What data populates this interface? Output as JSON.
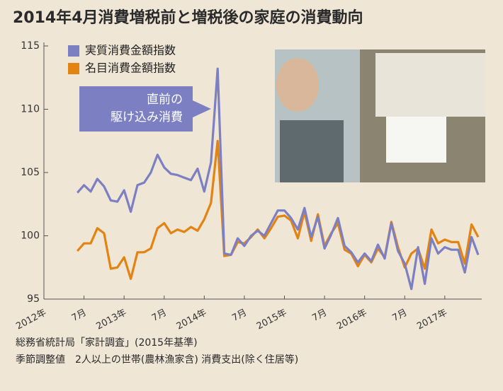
{
  "chart_data": {
    "type": "line",
    "title": "2014年4月消費増税前と増税後の家庭の消費動向",
    "categories": [
      "2012年",
      null,
      null,
      null,
      null,
      null,
      "7月",
      null,
      null,
      null,
      null,
      null,
      "2013年",
      null,
      null,
      null,
      null,
      null,
      "7月",
      null,
      null,
      null,
      null,
      null,
      "2014年",
      null,
      null,
      null,
      null,
      null,
      "7月",
      null,
      null,
      null,
      null,
      null,
      "2015年",
      null,
      null,
      null,
      null,
      null,
      "7月",
      null,
      null,
      null,
      null,
      null,
      "2016年",
      null,
      null,
      null,
      null,
      null,
      "7月",
      null,
      null,
      null,
      null,
      null,
      "2017年",
      null,
      null,
      null,
      null,
      null
    ],
    "series": [
      {
        "name": "実質消費金額指数",
        "color": "#7c80c2",
        "values": [
          null,
          null,
          null,
          null,
          null,
          103.4,
          104,
          103.5,
          104.5,
          103.9,
          102.8,
          102.7,
          103.6,
          101.9,
          104,
          104.2,
          105,
          106.4,
          105.4,
          104.9,
          104.8,
          104.6,
          104.4,
          105.3,
          103.5,
          105.8,
          113.2,
          98.6,
          98.5,
          99.8,
          99.2,
          100.0,
          100.4,
          100.0,
          101.0,
          102.0,
          102.0,
          101.4,
          100.5,
          102.2,
          99.9,
          101.5,
          99.0,
          100.1,
          101.4,
          99.2,
          98.7,
          97.9,
          98.6,
          98.0,
          99.3,
          98.2,
          101.0,
          98.8,
          97.8,
          95.8,
          99.1,
          96.2,
          99.8,
          98.6,
          99.1,
          98.9,
          98.9,
          97.1,
          99.9,
          98.5
        ]
      },
      {
        "name": "名目消費金額指数",
        "color": "#e38311",
        "values": [
          null,
          null,
          null,
          null,
          null,
          98.8,
          99.4,
          99.4,
          100.6,
          100.2,
          97.4,
          97.5,
          98.3,
          96.6,
          98.7,
          98.7,
          99.0,
          100.6,
          101.0,
          100.2,
          100.5,
          100.3,
          100.7,
          100.4,
          101.3,
          102.6,
          107.5,
          98.4,
          98.5,
          99.5,
          99.4,
          99.9,
          100.5,
          99.8,
          100.6,
          101.5,
          101.6,
          101.2,
          99.8,
          101.9,
          99.6,
          101.7,
          99.2,
          100.2,
          101.0,
          98.9,
          98.6,
          97.6,
          98.5,
          97.9,
          99.0,
          98.3,
          101.1,
          99.1,
          97.5,
          98.6,
          99.0,
          97.4,
          100.5,
          99.4,
          99.7,
          99.5,
          99.5,
          97.8,
          100.9,
          99.9
        ]
      }
    ],
    "ylim": [
      95,
      115
    ],
    "yticks": [
      95,
      100,
      105,
      110,
      115
    ],
    "grid": false,
    "legend": "top-left",
    "annotation": [
      "直前の",
      "駆け込み消費"
    ],
    "source": [
      "総務省統計局「家計調査」(2015年基準)",
      "季節調整値　2人以上の世帯(農林漁家含) 消費支出(除く住居等)"
    ]
  }
}
